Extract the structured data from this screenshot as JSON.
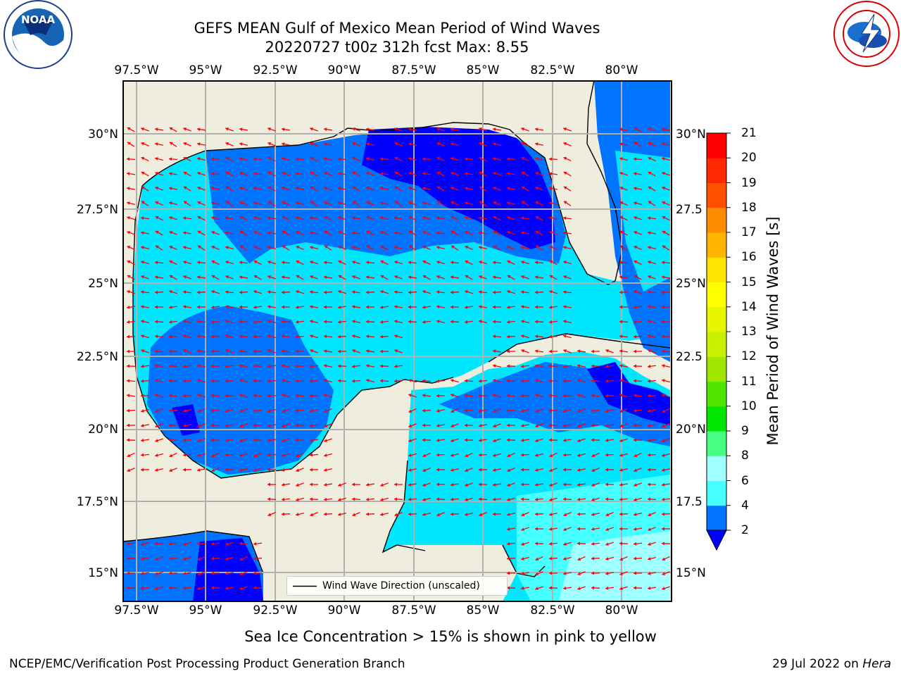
{
  "header": {
    "title_line1": "GEFS MEAN Gulf of Mexico Mean Period of Wind Waves",
    "title_line2": "20220727 t00z 312h fcst   Max: 8.55"
  },
  "logos": {
    "noaa_text": "NOAA",
    "noaa_ring": "NATIONAL OCEANIC AND ATMOSPHERIC ADMINISTRATION · U.S. DEPARTMENT OF COMMERCE",
    "nws_ring": "NATIONAL WEATHER SERVICE"
  },
  "map": {
    "lon_labels": [
      "97.5°W",
      "95°W",
      "92.5°W",
      "90°W",
      "87.5°W",
      "85°W",
      "82.5°W",
      "80°W"
    ],
    "lat_labels_left": [
      "30°N",
      "27.5°N",
      "25°N",
      "22.5°N",
      "20°N",
      "17.5°N",
      "15°N"
    ],
    "lat_labels_right": [
      "30°N",
      "27.5",
      "25°N",
      "22.5",
      "20°N",
      "17.5",
      "15°N"
    ],
    "legend_label": "Wind Wave Direction (unscaled)",
    "colors": {
      "land": "#efedde",
      "grid": "#b0b0b0",
      "arrow": "#ff0000",
      "coast": "#000000"
    }
  },
  "colorbar": {
    "label": "Mean Period of Wind Waves [s]",
    "ticks": [
      "2",
      "4",
      "6",
      "8",
      "9",
      "10",
      "11",
      "12",
      "13",
      "14",
      "15",
      "16",
      "17",
      "18",
      "19",
      "20",
      "21"
    ],
    "colors": [
      "#0073ff",
      "#00e6ff",
      "#46ffff",
      "#a0ffff",
      "#46ff82",
      "#00e600",
      "#50e600",
      "#a0e600",
      "#c8f000",
      "#e6f500",
      "#ffff00",
      "#ffe600",
      "#ffb400",
      "#ff8c00",
      "#ff5000",
      "#ff2800",
      "#ff0000"
    ],
    "under_color": "#0000ff"
  },
  "notes": {
    "sea_ice": "Sea Ice Concentration > 15% is shown in pink to yellow"
  },
  "footer": {
    "left": "NCEP/EMC/Verification Post Processing Product Generation Branch",
    "date": "29 Jul 2022 on",
    "machine": "Hera"
  }
}
